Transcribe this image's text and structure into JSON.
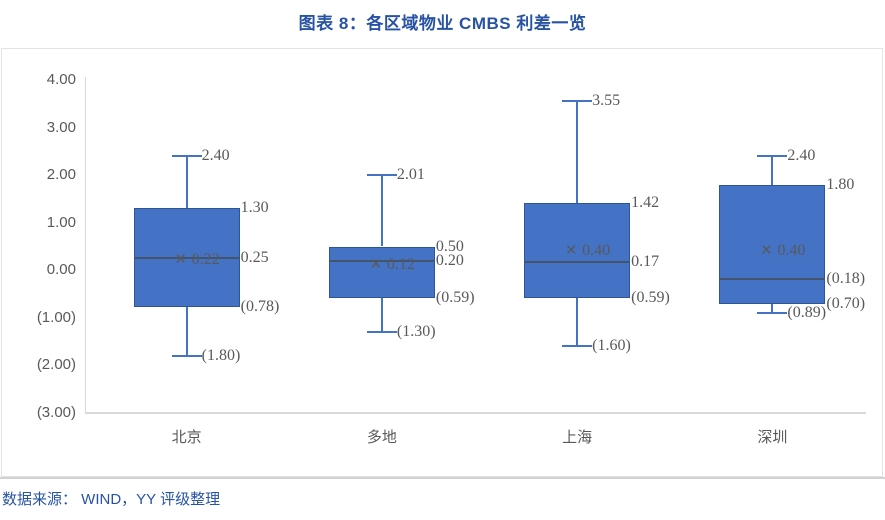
{
  "figure": {
    "title": "图表 8：各区域物业 CMBS 利差一览",
    "source_note": "数据来源： WIND，YY 评级整理"
  },
  "colors": {
    "title_blue": "#2853a4",
    "source_blue": "#2853a4",
    "box_fill": "#4472c4",
    "box_border": "#2f5597",
    "whisker": "#4472c4",
    "median_line": "#44546a",
    "mean_marker": "#595959",
    "data_label": "#595959",
    "axis_label": "#595959",
    "axis_line": "#d9d9d9"
  },
  "chart_data": {
    "type": "boxplot",
    "title": "图表 8：各区域物业 CMBS 利差一览",
    "xlabel": "",
    "ylabel": "",
    "ylim": [
      -3,
      4
    ],
    "grid": false,
    "legend": false,
    "mean_marker": "×",
    "categories": [
      "北京",
      "多地",
      "上海",
      "深圳"
    ],
    "y_ticks": [
      {
        "value": 4,
        "label": "4.00"
      },
      {
        "value": 3,
        "label": "3.00"
      },
      {
        "value": 2,
        "label": "2.00"
      },
      {
        "value": 1,
        "label": "1.00"
      },
      {
        "value": 0,
        "label": "0.00"
      },
      {
        "value": -1,
        "label": "(1.00)"
      },
      {
        "value": -2,
        "label": "(2.00)"
      },
      {
        "value": -3,
        "label": "(3.00)"
      }
    ],
    "series": [
      {
        "category": "北京",
        "whisker_high": 2.4,
        "q3": 1.3,
        "median": 0.25,
        "mean": 0.22,
        "q1": -0.78,
        "whisker_low": -1.8,
        "labels": {
          "whisker_high": "2.40",
          "q3": "1.30",
          "median": "0.25",
          "mean": "0.22",
          "q1": "(0.78)",
          "whisker_low": "(1.80)"
        }
      },
      {
        "category": "多地",
        "whisker_high": 2.01,
        "q3": 0.5,
        "median": 0.2,
        "mean": 0.12,
        "q1": -0.59,
        "whisker_low": -1.3,
        "labels": {
          "whisker_high": "2.01",
          "q3": "0.50",
          "median": "0.20",
          "mean": "0.12",
          "q1": "(0.59)",
          "whisker_low": "(1.30)"
        }
      },
      {
        "category": "上海",
        "whisker_high": 3.55,
        "q3": 1.42,
        "median": 0.17,
        "mean": 0.4,
        "q1": -0.59,
        "whisker_low": -1.6,
        "labels": {
          "whisker_high": "3.55",
          "q3": "1.42",
          "median": "0.17",
          "mean": "0.40",
          "q1": "(0.59)",
          "whisker_low": "(1.60)"
        }
      },
      {
        "category": "深圳",
        "whisker_high": 2.4,
        "q3": 1.8,
        "median": -0.18,
        "mean": 0.4,
        "q1": -0.7,
        "whisker_low": -0.89,
        "labels": {
          "whisker_high": "2.40",
          "q3": "1.80",
          "median": "(0.18)",
          "mean": "0.40",
          "q1": "(0.70)",
          "whisker_low": "(0.89)"
        }
      }
    ]
  }
}
